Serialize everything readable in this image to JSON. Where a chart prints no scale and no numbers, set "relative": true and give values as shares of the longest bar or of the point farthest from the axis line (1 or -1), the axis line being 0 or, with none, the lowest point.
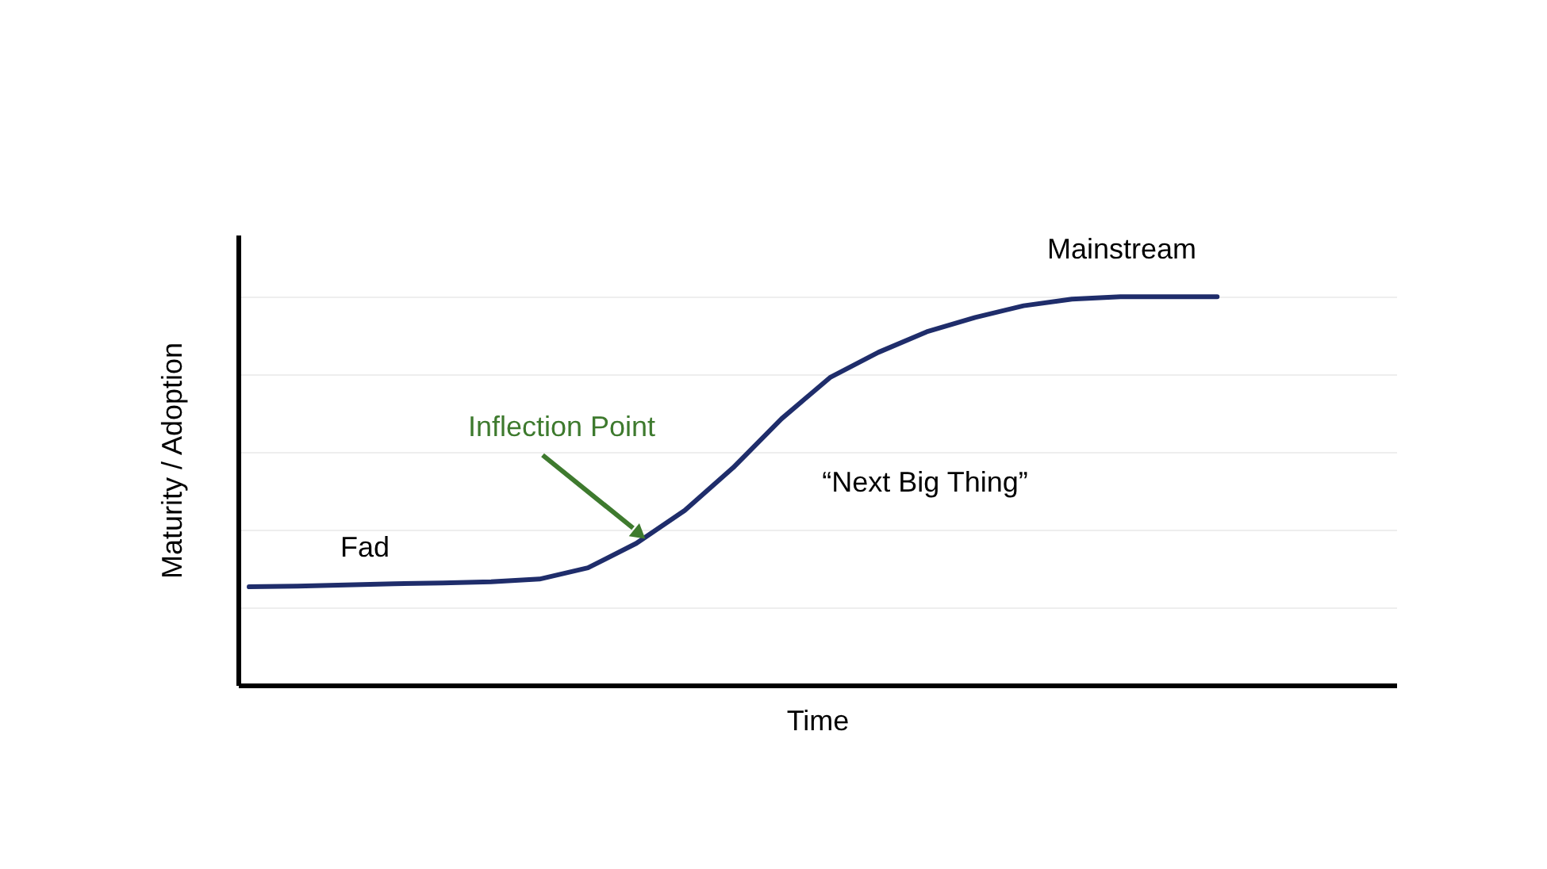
{
  "chart_data": {
    "type": "line",
    "relative": true,
    "xlabel": "Time",
    "ylabel": "Maturity / Adoption",
    "categories": [
      null,
      null,
      null,
      null,
      null,
      null,
      null,
      null,
      null,
      null,
      null,
      null,
      null,
      null,
      null,
      null,
      null,
      null,
      null,
      null,
      null,
      null,
      null,
      null
    ],
    "series": [
      {
        "color": "#1f2d6b",
        "values": [
          0.253,
          0.255,
          0.258,
          0.261,
          0.263,
          0.266,
          0.273,
          0.302,
          0.365,
          0.45,
          0.56,
          0.686,
          0.792,
          0.857,
          0.91,
          0.947,
          0.977,
          0.994,
          1.0,
          1.0,
          1.0,
          null,
          null,
          null
        ]
      }
    ],
    "annotations": [
      "Fad",
      "Inflection Point",
      "“Next Big Thing”",
      "Mainstream"
    ],
    "grid": "y",
    "marker": "none",
    "line_style": "solid"
  }
}
